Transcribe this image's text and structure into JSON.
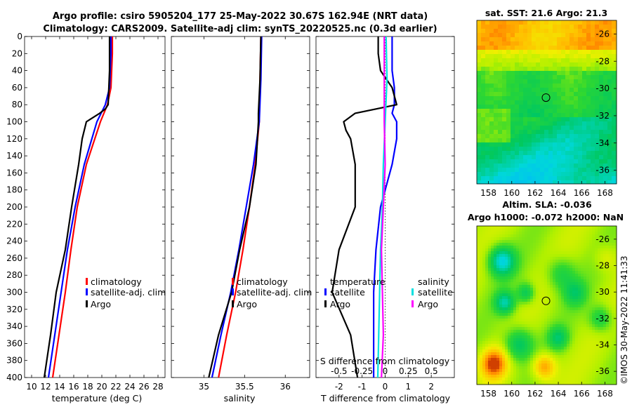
{
  "title": {
    "line1": "Argo profile: csiro 5905204_177 25-May-2022 30.67S 162.94E (NRT data)",
    "line2": "Climatology: CARS2009. Satellite-adj clim: synTS_20220525.nc (0.3d earlier)"
  },
  "colors": {
    "climatology": "#ff0000",
    "satellite": "#0000ff",
    "argo": "#000000",
    "sal_sat": "#00e0e0",
    "sal_argo": "#ff00ff"
  },
  "chart_data": [
    {
      "type": "line",
      "name": "temperature",
      "xlabel": "temperature (deg C)",
      "ylabel": "",
      "xlim": [
        9,
        29
      ],
      "ylim": [
        400,
        0
      ],
      "xticks": [
        "10",
        "12",
        "14",
        "16",
        "18",
        "20",
        "22",
        "24",
        "26",
        "28"
      ],
      "yticks": [
        "0",
        "20",
        "40",
        "60",
        "80",
        "100",
        "120",
        "140",
        "160",
        "180",
        "200",
        "220",
        "240",
        "260",
        "280",
        "300",
        "320",
        "340",
        "360",
        "380",
        "400"
      ],
      "legend": [
        "climatology",
        "satellite-adj. clim",
        "Argo"
      ],
      "series": [
        {
          "name": "climatology",
          "depth": [
            0,
            20,
            40,
            60,
            80,
            100,
            150,
            200,
            250,
            300,
            350,
            400
          ],
          "values": [
            21.5,
            21.5,
            21.4,
            21.3,
            20.8,
            19.8,
            17.8,
            16.5,
            15.6,
            14.8,
            13.9,
            13.0
          ]
        },
        {
          "name": "satellite-adj. clim",
          "depth": [
            0,
            20,
            40,
            60,
            80,
            100,
            150,
            200,
            250,
            300,
            350,
            400
          ],
          "values": [
            21.3,
            21.3,
            21.2,
            21.1,
            20.5,
            19.3,
            17.5,
            16.2,
            15.1,
            14.2,
            13.3,
            12.4
          ]
        },
        {
          "name": "Argo",
          "depth": [
            0,
            20,
            40,
            60,
            80,
            85,
            90,
            100,
            120,
            150,
            200,
            250,
            300,
            350,
            400
          ],
          "values": [
            21.1,
            21.1,
            21.1,
            21.0,
            20.9,
            20.5,
            19.7,
            17.8,
            17.2,
            16.7,
            15.7,
            14.8,
            13.5,
            12.7,
            11.8
          ]
        }
      ]
    },
    {
      "type": "line",
      "name": "salinity",
      "xlabel": "salinity",
      "ylabel": "",
      "xlim": [
        34.6,
        36.3
      ],
      "ylim": [
        400,
        0
      ],
      "xticks": [
        "35",
        "35.5",
        "36"
      ],
      "legend": [
        "climatology",
        "satellite-adj. clim",
        "Argo"
      ],
      "series": [
        {
          "name": "climatology",
          "depth": [
            0,
            50,
            100,
            150,
            200,
            250,
            300,
            350,
            400
          ],
          "values": [
            35.7,
            35.69,
            35.68,
            35.63,
            35.56,
            35.48,
            35.39,
            35.28,
            35.18
          ]
        },
        {
          "name": "satellite-adj. clim",
          "depth": [
            0,
            50,
            100,
            150,
            200,
            250,
            300,
            350,
            400
          ],
          "values": [
            35.71,
            35.7,
            35.68,
            35.61,
            35.52,
            35.43,
            35.33,
            35.21,
            35.1
          ]
        },
        {
          "name": "Argo",
          "depth": [
            0,
            50,
            90,
            100,
            150,
            200,
            250,
            300,
            350,
            400
          ],
          "values": [
            35.7,
            35.69,
            35.67,
            35.67,
            35.64,
            35.56,
            35.44,
            35.34,
            35.18,
            35.06
          ]
        }
      ]
    },
    {
      "type": "line",
      "name": "differences",
      "xlabel": "T difference from climatology",
      "ylabel": "",
      "top_xlabel": "S difference from climatology",
      "xlim": [
        -3,
        3
      ],
      "ylim": [
        400,
        0
      ],
      "xticks": [
        "-2",
        "-1",
        "0",
        "1",
        "2"
      ],
      "top_xticks": [
        "-0.5",
        "-0.25",
        "0",
        "0.25",
        "0.5"
      ],
      "legend_temperature": {
        "title": "temperature",
        "items": [
          "satellite",
          "Argo"
        ]
      },
      "legend_salinity": {
        "title": "salinity",
        "items": [
          "satellite",
          "Argo"
        ]
      },
      "series": [
        {
          "name": "T satellite",
          "depth": [
            0,
            20,
            40,
            60,
            80,
            90,
            100,
            120,
            150,
            200,
            250,
            300,
            350,
            400
          ],
          "values": [
            0.3,
            0.3,
            0.3,
            0.4,
            0.4,
            0.3,
            0.5,
            0.5,
            0.3,
            -0.2,
            -0.4,
            -0.5,
            -0.5,
            -0.5
          ]
        },
        {
          "name": "T Argo",
          "depth": [
            0,
            20,
            40,
            60,
            80,
            90,
            100,
            110,
            120,
            150,
            200,
            250,
            300,
            350,
            400
          ],
          "values": [
            -0.3,
            -0.3,
            -0.2,
            0.3,
            0.5,
            -1.3,
            -1.8,
            -1.7,
            -1.5,
            -1.3,
            -1.3,
            -2.0,
            -2.3,
            -1.5,
            -1.2
          ]
        },
        {
          "name": "S satellite",
          "depth": [
            0,
            50,
            100,
            150,
            200,
            250,
            300,
            350,
            400
          ],
          "values": [
            0.01,
            0.02,
            0.0,
            -0.02,
            -0.03,
            -0.05,
            -0.06,
            -0.07,
            -0.08
          ]
        },
        {
          "name": "S Argo",
          "depth": [
            0,
            50,
            100,
            150,
            200,
            250,
            300,
            350,
            400
          ],
          "values": [
            -0.01,
            -0.01,
            -0.01,
            0.0,
            -0.02,
            -0.04,
            -0.03,
            -0.02,
            -0.04
          ]
        }
      ]
    },
    {
      "type": "heatmap",
      "name": "SST map",
      "title": "sat. SST: 21.6 Argo: 21.3",
      "xlim": [
        157,
        169
      ],
      "ylim": [
        -37,
        -25
      ],
      "xticks": [
        "158",
        "160",
        "162",
        "164",
        "166",
        "168"
      ],
      "yticks": [
        "-26",
        "-28",
        "-30",
        "-32",
        "-34",
        "-36"
      ],
      "marker": {
        "lon": 162.94,
        "lat": -30.67
      }
    },
    {
      "type": "heatmap",
      "name": "SLA map",
      "title": "Altim. SLA: -0.036",
      "subtitle": "Argo h1000: -0.072 h2000: NaN",
      "xlim": [
        157,
        169
      ],
      "ylim": [
        -37,
        -25
      ],
      "xticks": [
        "158",
        "160",
        "162",
        "164",
        "166",
        "168"
      ],
      "yticks": [
        "-26",
        "-28",
        "-30",
        "-32",
        "-34",
        "-36"
      ],
      "marker": {
        "lon": 162.94,
        "lat": -30.67
      }
    }
  ],
  "watermark": "©IMOS 30-May-2022 11:41:33"
}
